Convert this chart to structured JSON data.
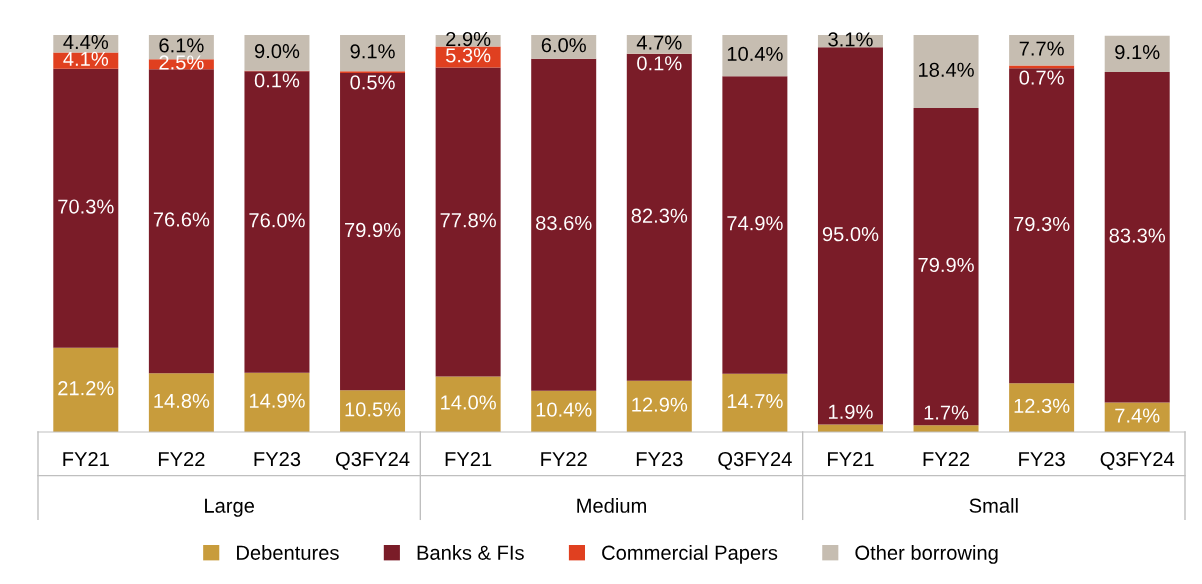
{
  "chart_data": {
    "type": "bar",
    "stacked": true,
    "data_labels": true,
    "legend": "bottom",
    "grid": false,
    "categories": [
      "FY21",
      "FY22",
      "FY23",
      "Q3FY24",
      "FY21",
      "FY22",
      "FY23",
      "Q3FY24",
      "FY21",
      "FY22",
      "FY23",
      "Q3FY24"
    ],
    "annotations": [
      "Large",
      "Medium",
      "Small"
    ],
    "series": [
      {
        "name": "Debentures",
        "color": "#c89c3c",
        "values": [
          21.2,
          14.8,
          14.9,
          10.5,
          14.0,
          10.4,
          12.9,
          14.7,
          1.9,
          1.7,
          12.3,
          7.4
        ],
        "value_labels": [
          "21.2%",
          "14.8%",
          "14.9%",
          "10.5%",
          "14.0%",
          "10.4%",
          "12.9%",
          "14.7%",
          "1.9%",
          "1.7%",
          "12.3%",
          "7.4%"
        ]
      },
      {
        "name": "Banks & FIs",
        "color": "#7a1c28",
        "values": [
          70.3,
          76.6,
          76.0,
          79.9,
          77.8,
          83.6,
          82.3,
          74.9,
          95.0,
          79.9,
          79.3,
          83.3
        ],
        "value_labels": [
          "70.3%",
          "76.6%",
          "76.0%",
          "79.9%",
          "77.8%",
          "83.6%",
          "82.3%",
          "74.9%",
          "95.0%",
          "79.9%",
          "79.3%",
          "83.3%"
        ]
      },
      {
        "name": "Commercial Papers",
        "color": "#e04020",
        "values": [
          4.1,
          2.5,
          0.1,
          0.5,
          5.3,
          null,
          0.1,
          null,
          null,
          null,
          0.7,
          null
        ],
        "value_labels": [
          "4.1%",
          "2.5%",
          "0.1%",
          "0.5%",
          "5.3%",
          null,
          "0.1%",
          null,
          null,
          null,
          "0.7%",
          null
        ]
      },
      {
        "name": "Other borrowing",
        "color": "#c6bdb1",
        "values": [
          4.4,
          6.1,
          9.0,
          9.1,
          2.9,
          6.0,
          4.7,
          10.4,
          3.1,
          18.4,
          7.7,
          9.1
        ],
        "value_labels": [
          "4.4%",
          "6.1%",
          "9.0%",
          "9.1%",
          "2.9%",
          "6.0%",
          "4.7%",
          "10.4%",
          "3.1%",
          "18.4%",
          "7.7%",
          "9.1%"
        ]
      }
    ]
  }
}
